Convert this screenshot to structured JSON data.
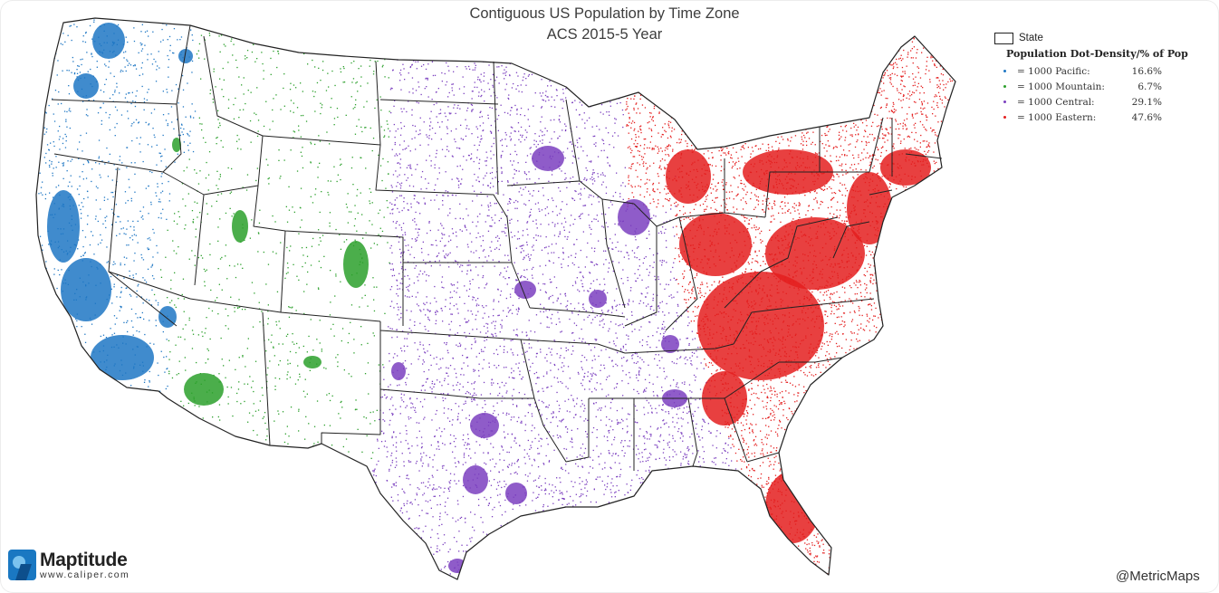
{
  "title": {
    "line1": "Contiguous US Population by Time Zone",
    "line2": "ACS 2015-5 Year"
  },
  "legend": {
    "state_label": "State",
    "heading": "Population Dot-Density/% of Pop",
    "rows": [
      {
        "label": "= 1000 Pacific:",
        "pct": "16.6%",
        "color": "#1f77c4"
      },
      {
        "label": "= 1000 Mountain:",
        "pct": "6.7%",
        "color": "#2ca02c"
      },
      {
        "label": "= 1000 Central:",
        "pct": "29.1%",
        "color": "#7b3fbf"
      },
      {
        "label": "= 1000 Eastern:",
        "pct": "47.6%",
        "color": "#e41f1f"
      }
    ]
  },
  "map": {
    "zones": [
      "Pacific",
      "Mountain",
      "Central",
      "Eastern"
    ],
    "colors": {
      "Pacific": "#1f77c4",
      "Mountain": "#2ca02c",
      "Central": "#7b3fbf",
      "Eastern": "#e41f1f",
      "boundary": "#222222"
    }
  },
  "logo": {
    "name": "Maptitude",
    "url": "www.caliper.com"
  },
  "credit": "@MetricMaps"
}
